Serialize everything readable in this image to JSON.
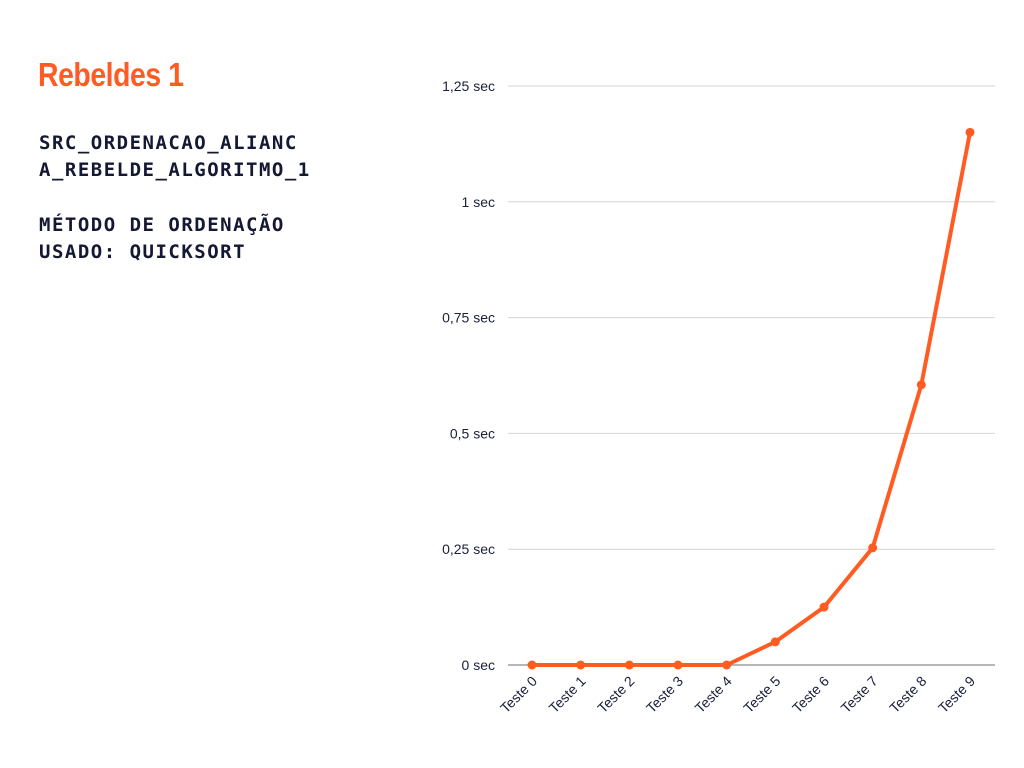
{
  "header": {
    "title": "Rebeldes 1",
    "file_line1": "SRC_ORDENACAO_ALIANC",
    "file_line2": "A_REBELDE_ALGORITMO_1",
    "method_line1": "MÉTODO DE ORDENAÇÃO",
    "method_line2": "USADO: QUICKSORT"
  },
  "colors": {
    "accent": "#FF5B22",
    "text": "#141832",
    "grid": "#d6d6d6",
    "axis": "#8a8a8a"
  },
  "chart_data": {
    "type": "line",
    "title": "",
    "xlabel": "",
    "ylabel": "",
    "categories": [
      "Teste 0",
      "Teste 1",
      "Teste 2",
      "Teste 3",
      "Teste 4",
      "Teste 5",
      "Teste 6",
      "Teste 7",
      "Teste 8",
      "Teste 9"
    ],
    "series": [
      {
        "values": [
          0,
          0,
          0,
          0,
          0,
          0.05,
          0.125,
          0.253,
          0.605,
          1.15
        ]
      }
    ],
    "ylim": [
      0,
      1.25
    ],
    "yticks": [
      0,
      0.25,
      0.5,
      0.75,
      1,
      1.25
    ],
    "ytick_labels": [
      "0 sec",
      "0,25 sec",
      "0,5 sec",
      "0,75 sec",
      "1 sec",
      "1,25 sec"
    ],
    "grid": true,
    "legend": "none"
  }
}
